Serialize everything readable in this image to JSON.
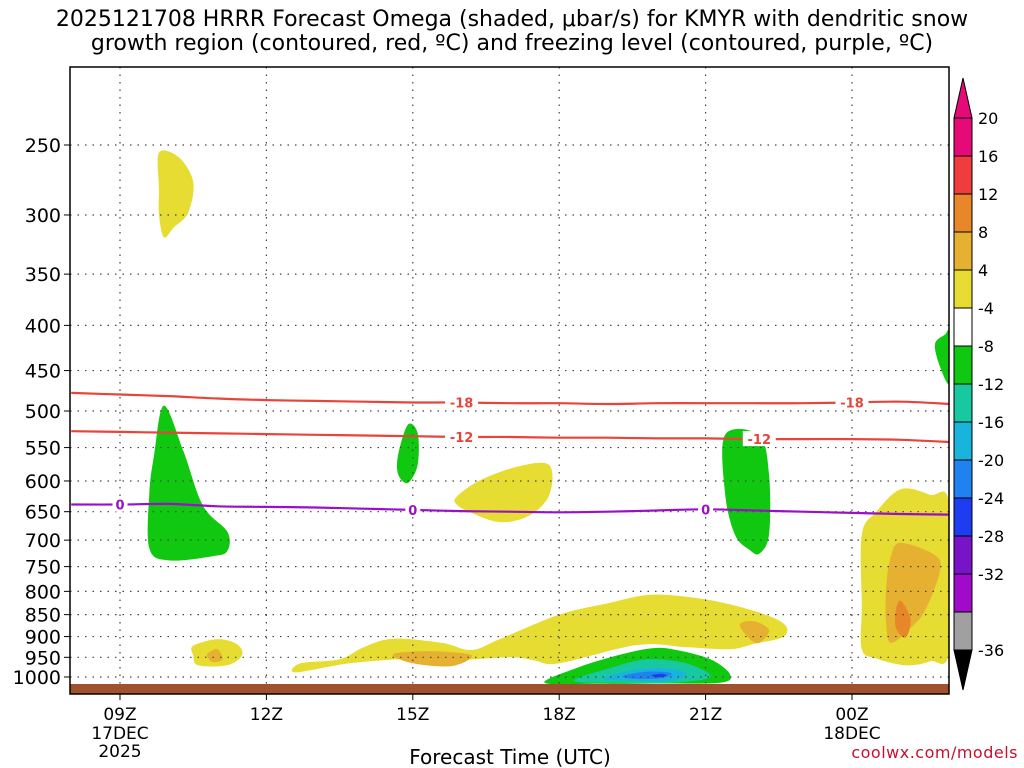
{
  "chart_data": {
    "type": "heatmap",
    "title_line1": "2025121708 HRRR Forecast Omega (shaded, μbar/s) for KMYR with dendritic snow",
    "title_line2": "growth region (contoured, red, ºC) and freezing level (contoured, purple, ºC)",
    "xlabel": "Forecast Time (UTC)",
    "x_range_hours": [
      8.0,
      26.0
    ],
    "x_ticks": [
      {
        "hour": 9,
        "label": "09Z",
        "sub1": "17DEC",
        "sub2": "2025"
      },
      {
        "hour": 12,
        "label": "12Z",
        "sub1": "",
        "sub2": ""
      },
      {
        "hour": 15,
        "label": "15Z",
        "sub1": "",
        "sub2": ""
      },
      {
        "hour": 18,
        "label": "18Z",
        "sub1": "",
        "sub2": ""
      },
      {
        "hour": 21,
        "label": "21Z",
        "sub1": "",
        "sub2": ""
      },
      {
        "hour": 24,
        "label": "00Z",
        "sub1": "18DEC",
        "sub2": ""
      }
    ],
    "y_ticks_hPa": [
      250,
      300,
      350,
      400,
      450,
      500,
      550,
      600,
      650,
      700,
      750,
      800,
      850,
      900,
      950,
      1000
    ],
    "contours": [
      {
        "name": "dgz-minus18",
        "color": "#e8443a",
        "label": "-18",
        "points": [
          [
            8.0,
            477
          ],
          [
            9.0,
            479
          ],
          [
            10.0,
            481
          ],
          [
            11.0,
            484
          ],
          [
            12.0,
            486
          ],
          [
            13.0,
            487
          ],
          [
            14.0,
            488
          ],
          [
            15.0,
            489
          ],
          [
            16.0,
            489
          ],
          [
            17.0,
            490
          ],
          [
            18.0,
            490
          ],
          [
            19.0,
            491
          ],
          [
            20.0,
            490
          ],
          [
            21.0,
            490
          ],
          [
            22.0,
            490
          ],
          [
            23.0,
            490
          ],
          [
            24.0,
            489
          ],
          [
            25.0,
            488
          ],
          [
            26.0,
            491
          ]
        ],
        "label_hours": [
          16.0,
          24.0
        ]
      },
      {
        "name": "dgz-minus12",
        "color": "#e8443a",
        "label": "-12",
        "points": [
          [
            8.0,
            527
          ],
          [
            9.0,
            528
          ],
          [
            10.0,
            529
          ],
          [
            11.0,
            530
          ],
          [
            12.0,
            531
          ],
          [
            13.0,
            532
          ],
          [
            14.0,
            533
          ],
          [
            15.0,
            534
          ],
          [
            16.0,
            535
          ],
          [
            17.0,
            535
          ],
          [
            18.0,
            536
          ],
          [
            19.0,
            536
          ],
          [
            20.0,
            537
          ],
          [
            21.0,
            537
          ],
          [
            22.0,
            538
          ],
          [
            23.0,
            538
          ],
          [
            24.0,
            538
          ],
          [
            25.0,
            539
          ],
          [
            26.0,
            542
          ]
        ],
        "label_hours": [
          16.0,
          22.1
        ]
      },
      {
        "name": "freezing-level",
        "color": "#9a10c8",
        "label": "0",
        "points": [
          [
            8.0,
            638
          ],
          [
            9.0,
            638
          ],
          [
            10.0,
            637
          ],
          [
            11.0,
            641
          ],
          [
            12.0,
            642
          ],
          [
            13.0,
            643
          ],
          [
            14.0,
            645
          ],
          [
            15.0,
            647
          ],
          [
            16.0,
            649
          ],
          [
            17.0,
            650
          ],
          [
            18.0,
            651
          ],
          [
            19.0,
            650
          ],
          [
            20.0,
            648
          ],
          [
            21.0,
            646
          ],
          [
            22.0,
            648
          ],
          [
            23.0,
            650
          ],
          [
            24.0,
            652
          ],
          [
            25.0,
            654
          ],
          [
            26.0,
            655
          ]
        ],
        "label_hours": [
          9.0,
          15.0,
          21.0
        ]
      }
    ],
    "omega_areas": [
      {
        "name": "upper-weak-rising",
        "color": "#e6dc32",
        "points": [
          [
            9.8,
            255
          ],
          [
            10.2,
            258
          ],
          [
            10.5,
            275
          ],
          [
            10.4,
            298
          ],
          [
            10.1,
            310
          ],
          [
            9.9,
            318
          ],
          [
            9.8,
            300
          ],
          [
            9.8,
            280
          ]
        ]
      },
      {
        "name": "left-rising-green",
        "color": "#10c810",
        "points": [
          [
            9.9,
            493
          ],
          [
            10.3,
            555
          ],
          [
            10.7,
            640
          ],
          [
            11.2,
            685
          ],
          [
            11.2,
            720
          ],
          [
            10.9,
            730
          ],
          [
            10.0,
            738
          ],
          [
            9.6,
            715
          ],
          [
            9.6,
            620
          ],
          [
            9.7,
            560
          ]
        ]
      },
      {
        "name": "narrow-green-15z",
        "color": "#10c810",
        "points": [
          [
            14.9,
            518
          ],
          [
            15.1,
            530
          ],
          [
            15.1,
            575
          ],
          [
            14.9,
            603
          ],
          [
            14.7,
            590
          ],
          [
            14.7,
            560
          ]
        ]
      },
      {
        "name": "green-21z",
        "color": "#10c810",
        "points": [
          [
            21.4,
            532
          ],
          [
            22.1,
            533
          ],
          [
            22.3,
            590
          ],
          [
            22.3,
            690
          ],
          [
            22.1,
            725
          ],
          [
            21.9,
            718
          ],
          [
            21.6,
            690
          ],
          [
            21.4,
            620
          ]
        ]
      },
      {
        "name": "green-edge-right",
        "color": "#10c810",
        "points": [
          [
            26.0,
            408
          ],
          [
            26.0,
            465
          ],
          [
            25.8,
            445
          ],
          [
            25.7,
            420
          ],
          [
            25.9,
            410
          ]
        ]
      },
      {
        "name": "sinking-low-yellow",
        "color": "#e6dc32",
        "points": [
          [
            12.7,
            965
          ],
          [
            13.5,
            955
          ],
          [
            14.0,
            925
          ],
          [
            14.6,
            905
          ],
          [
            15.6,
            915
          ],
          [
            16.2,
            932
          ],
          [
            16.8,
            905
          ],
          [
            18.0,
            850
          ],
          [
            19.0,
            825
          ],
          [
            19.9,
            807
          ],
          [
            21.0,
            817
          ],
          [
            22.0,
            842
          ],
          [
            22.6,
            870
          ],
          [
            22.6,
            900
          ],
          [
            22.0,
            917
          ],
          [
            21.5,
            930
          ],
          [
            20.6,
            925
          ],
          [
            19.6,
            920
          ],
          [
            18.0,
            965
          ],
          [
            17.5,
            958
          ],
          [
            17.0,
            950
          ],
          [
            15.8,
            958
          ],
          [
            14.8,
            955
          ],
          [
            13.7,
            965
          ],
          [
            12.6,
            988
          ]
        ]
      },
      {
        "name": "yellow-left-low",
        "color": "#e6dc32",
        "points": [
          [
            10.5,
            922
          ],
          [
            11.0,
            906
          ],
          [
            11.4,
            918
          ],
          [
            11.5,
            945
          ],
          [
            11.2,
            970
          ],
          [
            10.6,
            970
          ],
          [
            10.5,
            945
          ]
        ]
      },
      {
        "name": "yellow-mid-600",
        "color": "#e6dc32",
        "points": [
          [
            15.9,
            625
          ],
          [
            16.4,
            598
          ],
          [
            17.2,
            577
          ],
          [
            17.8,
            576
          ],
          [
            17.8,
            622
          ],
          [
            17.4,
            656
          ],
          [
            16.8,
            668
          ],
          [
            16.2,
            652
          ],
          [
            15.9,
            638
          ]
        ]
      },
      {
        "name": "yellow-right",
        "color": "#e6dc32",
        "points": [
          [
            25.0,
            613
          ],
          [
            25.6,
            622
          ],
          [
            26.0,
            640
          ],
          [
            26.0,
            930
          ],
          [
            25.6,
            960
          ],
          [
            25.1,
            970
          ],
          [
            24.5,
            953
          ],
          [
            24.2,
            930
          ],
          [
            24.2,
            830
          ],
          [
            24.2,
            690
          ],
          [
            24.5,
            650
          ]
        ]
      },
      {
        "name": "orange-right",
        "color": "#e6b030",
        "points": [
          [
            25.0,
            705
          ],
          [
            25.7,
            728
          ],
          [
            25.8,
            760
          ],
          [
            25.5,
            840
          ],
          [
            25.2,
            880
          ],
          [
            24.8,
            915
          ],
          [
            24.7,
            870
          ],
          [
            24.7,
            790
          ],
          [
            24.8,
            730
          ]
        ]
      },
      {
        "name": "orange-dark-right",
        "color": "#e8862a",
        "points": [
          [
            25.0,
            820
          ],
          [
            25.2,
            860
          ],
          [
            25.1,
            902
          ],
          [
            24.9,
            880
          ],
          [
            24.9,
            840
          ]
        ]
      },
      {
        "name": "orange-15z",
        "color": "#e6b030",
        "points": [
          [
            14.6,
            942
          ],
          [
            15.4,
            935
          ],
          [
            16.2,
            945
          ],
          [
            15.8,
            972
          ],
          [
            15.0,
            965
          ]
        ]
      },
      {
        "name": "orange-21z",
        "color": "#e6b030",
        "points": [
          [
            21.7,
            872
          ],
          [
            22.0,
            865
          ],
          [
            22.3,
            885
          ],
          [
            22.1,
            915
          ],
          [
            21.9,
            905
          ]
        ]
      },
      {
        "name": "orange-left-low",
        "color": "#e6b030",
        "points": [
          [
            10.8,
            940
          ],
          [
            11.0,
            930
          ],
          [
            11.1,
            955
          ],
          [
            10.9,
            962
          ],
          [
            10.8,
            950
          ]
        ]
      },
      {
        "name": "sinking-cold-green",
        "color": "#10c810",
        "points": [
          [
            17.7,
            1015
          ],
          [
            18.4,
            975
          ],
          [
            19.2,
            945
          ],
          [
            19.9,
            928
          ],
          [
            20.4,
            932
          ],
          [
            21.1,
            955
          ],
          [
            21.5,
            993
          ],
          [
            21.3,
            1015
          ],
          [
            20.0,
            1017
          ],
          [
            18.8,
            1018
          ]
        ]
      },
      {
        "name": "sinking-teal",
        "color": "#18c8a0",
        "points": [
          [
            18.3,
            1010
          ],
          [
            19.1,
            975
          ],
          [
            19.8,
            955
          ],
          [
            20.6,
            965
          ],
          [
            21.1,
            1000
          ],
          [
            20.3,
            1015
          ],
          [
            19.2,
            1015
          ]
        ]
      },
      {
        "name": "sinking-cyan",
        "color": "#18b4dc",
        "points": [
          [
            18.9,
            1005
          ],
          [
            19.4,
            985
          ],
          [
            20.1,
            977
          ],
          [
            20.6,
            990
          ],
          [
            20.3,
            1010
          ],
          [
            19.4,
            1010
          ]
        ]
      },
      {
        "name": "sinking-blue",
        "color": "#1e82f0",
        "points": [
          [
            19.3,
            998
          ],
          [
            19.8,
            986
          ],
          [
            20.3,
            990
          ],
          [
            20.1,
            1003
          ],
          [
            19.6,
            1005
          ]
        ]
      },
      {
        "name": "sinking-core",
        "color": "#1e3cf0",
        "points": [
          [
            19.9,
            995
          ],
          [
            20.1,
            992
          ],
          [
            20.2,
            997
          ],
          [
            20.0,
            1001
          ]
        ]
      }
    ],
    "colorbar": [
      {
        "value": "20",
        "color": "#e60a78"
      },
      {
        "value": "16",
        "color": "#f03c3c"
      },
      {
        "value": "12",
        "color": "#e8862a"
      },
      {
        "value": "8",
        "color": "#e6b030"
      },
      {
        "value": "4",
        "color": "#e6dc32"
      },
      {
        "value": "-4",
        "color": "#ffffff"
      },
      {
        "value": "-8",
        "color": "#10c810"
      },
      {
        "value": "-12",
        "color": "#18c8a0"
      },
      {
        "value": "-16",
        "color": "#18b4dc"
      },
      {
        "value": "-20",
        "color": "#1e82f0"
      },
      {
        "value": "-24",
        "color": "#1e3cf0"
      },
      {
        "value": "-28",
        "color": "#7814c8"
      },
      {
        "value": "-32",
        "color": "#a00ac8"
      },
      {
        "value": "-36",
        "color": "#a0a0a0"
      }
    ],
    "ground_color": "#a0522d",
    "credit": "coolwx.com/models"
  }
}
